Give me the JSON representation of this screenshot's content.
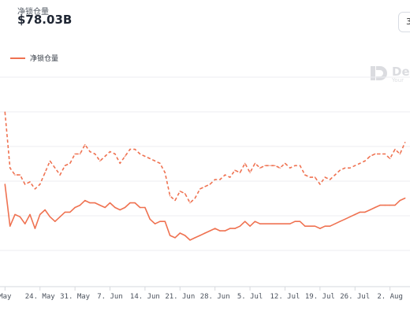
{
  "header": {
    "metric_label": "净锁仓量",
    "metric_value": "$78.03B",
    "range_button": "3"
  },
  "legend": {
    "label": "净锁仓量"
  },
  "watermark": {
    "text": "De",
    "sub": "Your"
  },
  "colors": {
    "series": "#ef7251",
    "grid": "#eceef2",
    "axis": "#d6d9de"
  },
  "chart_data": {
    "type": "line",
    "title": "",
    "xlabel": "",
    "ylabel": "",
    "x_ticks": [
      "May",
      "24. May",
      "31. May",
      "7. Jun",
      "14. Jun",
      "21. Jun",
      "28. Jun",
      "5. Jul",
      "12. Jul",
      "19. Jul",
      "26. Jul",
      "2. Aug"
    ],
    "y_ticks": [],
    "grid": true,
    "legend_position": "top-left",
    "series": [
      {
        "name": "净锁仓量",
        "style": "solid",
        "x": [
          "2021-05-17",
          "2021-05-18",
          "2021-05-19",
          "2021-05-20",
          "2021-05-21",
          "2021-05-22",
          "2021-05-23",
          "2021-05-24",
          "2021-05-25",
          "2021-05-26",
          "2021-05-27",
          "2021-05-28",
          "2021-05-29",
          "2021-05-30",
          "2021-05-31",
          "2021-06-01",
          "2021-06-02",
          "2021-06-03",
          "2021-06-04",
          "2021-06-05",
          "2021-06-06",
          "2021-06-07",
          "2021-06-08",
          "2021-06-09",
          "2021-06-10",
          "2021-06-11",
          "2021-06-12",
          "2021-06-13",
          "2021-06-14",
          "2021-06-15",
          "2021-06-16",
          "2021-06-17",
          "2021-06-18",
          "2021-06-19",
          "2021-06-20",
          "2021-06-21",
          "2021-06-22",
          "2021-06-23",
          "2021-06-24",
          "2021-06-25",
          "2021-06-26",
          "2021-06-27",
          "2021-06-28",
          "2021-06-29",
          "2021-06-30",
          "2021-07-01",
          "2021-07-02",
          "2021-07-03",
          "2021-07-04",
          "2021-07-05",
          "2021-07-06",
          "2021-07-07",
          "2021-07-08",
          "2021-07-09",
          "2021-07-10",
          "2021-07-11",
          "2021-07-12",
          "2021-07-13",
          "2021-07-14",
          "2021-07-15",
          "2021-07-16",
          "2021-07-17",
          "2021-07-18",
          "2021-07-19",
          "2021-07-20",
          "2021-07-21",
          "2021-07-22",
          "2021-07-23",
          "2021-07-24",
          "2021-07-25",
          "2021-07-26",
          "2021-07-27",
          "2021-07-28",
          "2021-07-29",
          "2021-07-30",
          "2021-07-31",
          "2021-08-01",
          "2021-08-02",
          "2021-08-03",
          "2021-08-04",
          "2021-08-05"
        ],
        "values": [
          84,
          66,
          71,
          70,
          67,
          71,
          65,
          71,
          73,
          70,
          68,
          70,
          72,
          72,
          74,
          75,
          77,
          76,
          76,
          75,
          74,
          76,
          74,
          73,
          74,
          76,
          76,
          74,
          74,
          69,
          67,
          68,
          68,
          62,
          61,
          63,
          62,
          60,
          61,
          62,
          63,
          64,
          65,
          64,
          64,
          65,
          65,
          66,
          68,
          66,
          68,
          67,
          67,
          67,
          67,
          67,
          67,
          67,
          68,
          68,
          66,
          66,
          66,
          65,
          66,
          66,
          67,
          68,
          69,
          70,
          71,
          72,
          72,
          73,
          74,
          75,
          75,
          75,
          75,
          77,
          78.03
        ]
      },
      {
        "name": "",
        "style": "dashed",
        "x": [
          "2021-05-17",
          "2021-05-18",
          "2021-05-19",
          "2021-05-20",
          "2021-05-21",
          "2021-05-22",
          "2021-05-23",
          "2021-05-24",
          "2021-05-25",
          "2021-05-26",
          "2021-05-27",
          "2021-05-28",
          "2021-05-29",
          "2021-05-30",
          "2021-05-31",
          "2021-06-01",
          "2021-06-02",
          "2021-06-03",
          "2021-06-04",
          "2021-06-05",
          "2021-06-06",
          "2021-06-07",
          "2021-06-08",
          "2021-06-09",
          "2021-06-10",
          "2021-06-11",
          "2021-06-12",
          "2021-06-13",
          "2021-06-14",
          "2021-06-15",
          "2021-06-16",
          "2021-06-17",
          "2021-06-18",
          "2021-06-19",
          "2021-06-20",
          "2021-06-21",
          "2021-06-22",
          "2021-06-23",
          "2021-06-24",
          "2021-06-25",
          "2021-06-26",
          "2021-06-27",
          "2021-06-28",
          "2021-06-29",
          "2021-06-30",
          "2021-07-01",
          "2021-07-02",
          "2021-07-03",
          "2021-07-04",
          "2021-07-05",
          "2021-07-06",
          "2021-07-07",
          "2021-07-08",
          "2021-07-09",
          "2021-07-10",
          "2021-07-11",
          "2021-07-12",
          "2021-07-13",
          "2021-07-14",
          "2021-07-15",
          "2021-07-16",
          "2021-07-17",
          "2021-07-18",
          "2021-07-19",
          "2021-07-20",
          "2021-07-21",
          "2021-07-22",
          "2021-07-23",
          "2021-07-24",
          "2021-07-25",
          "2021-07-26",
          "2021-07-27",
          "2021-07-28",
          "2021-07-29",
          "2021-07-30",
          "2021-07-31",
          "2021-08-01",
          "2021-08-02",
          "2021-08-03",
          "2021-08-04",
          "2021-08-05"
        ],
        "values": [
          115,
          91,
          88,
          88,
          84,
          85,
          82,
          84,
          89,
          94,
          91,
          88,
          92,
          93,
          97,
          97,
          101,
          98,
          97,
          94,
          96,
          98,
          97,
          93,
          96,
          99,
          99,
          97,
          96,
          95,
          94,
          93,
          89,
          79,
          77,
          81,
          80,
          76,
          78,
          82,
          83,
          84,
          86,
          86,
          88,
          87,
          90,
          89,
          93,
          89,
          93,
          91,
          92,
          92,
          92,
          91,
          93,
          91,
          92,
          92,
          88,
          87,
          87,
          84,
          87,
          86,
          88,
          90,
          91,
          91,
          92,
          93,
          94,
          96,
          97,
          97,
          97,
          95,
          99,
          97,
          102
        ]
      }
    ]
  }
}
